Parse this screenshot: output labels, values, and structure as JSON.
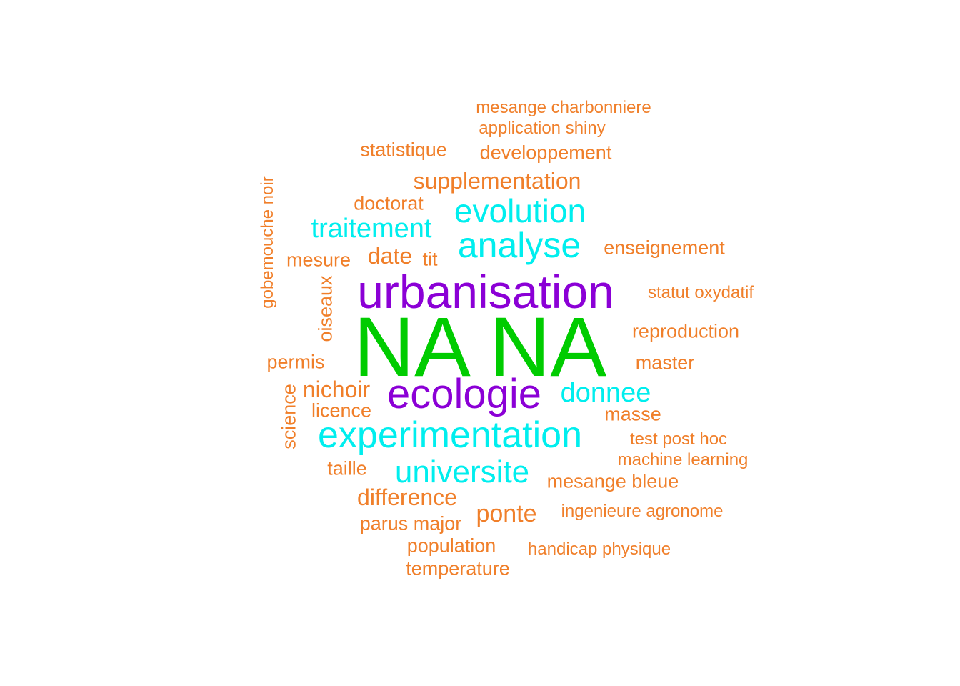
{
  "colors": {
    "green": "#00CC00",
    "purple": "#8B00D6",
    "cyan": "#00EEEE",
    "orange": "#F07F2A",
    "background": "#FFFFFF"
  },
  "words": {
    "na": {
      "text": "NA NA",
      "color": "#00CC00",
      "weight_rank": 1
    },
    "urbanisation": {
      "text": "urbanisation",
      "color": "#8B00D6",
      "weight_rank": 2
    },
    "ecologie": {
      "text": "ecologie",
      "color": "#8B00D6",
      "weight_rank": 3
    },
    "experimentation": {
      "text": "experimentation",
      "color": "#00EEEE",
      "weight_rank": 4
    },
    "analyse": {
      "text": "analyse",
      "color": "#00EEEE",
      "weight_rank": 5
    },
    "evolution": {
      "text": "evolution",
      "color": "#00EEEE",
      "weight_rank": 6
    },
    "universite": {
      "text": "universite",
      "color": "#00EEEE",
      "weight_rank": 7
    },
    "traitement": {
      "text": "traitement",
      "color": "#00EEEE",
      "weight_rank": 8
    },
    "donnee": {
      "text": "donnee",
      "color": "#00EEEE",
      "weight_rank": 9
    },
    "supplementation": {
      "text": "supplementation",
      "color": "#F07F2A"
    },
    "difference": {
      "text": "difference",
      "color": "#F07F2A"
    },
    "ponte": {
      "text": "ponte",
      "color": "#F07F2A"
    },
    "nichoir": {
      "text": "nichoir",
      "color": "#F07F2A"
    },
    "date": {
      "text": "date",
      "color": "#F07F2A"
    },
    "developpement": {
      "text": "developpement",
      "color": "#F07F2A"
    },
    "statistique": {
      "text": "statistique",
      "color": "#F07F2A"
    },
    "doctorat": {
      "text": "doctorat",
      "color": "#F07F2A"
    },
    "mesure": {
      "text": "mesure",
      "color": "#F07F2A"
    },
    "enseignement": {
      "text": "enseignement",
      "color": "#F07F2A"
    },
    "reproduction": {
      "text": "reproduction",
      "color": "#F07F2A"
    },
    "master": {
      "text": "master",
      "color": "#F07F2A"
    },
    "permis": {
      "text": "permis",
      "color": "#F07F2A"
    },
    "licence": {
      "text": "licence",
      "color": "#F07F2A"
    },
    "masse": {
      "text": "masse",
      "color": "#F07F2A"
    },
    "taille": {
      "text": "taille",
      "color": "#F07F2A"
    },
    "mesange_bleue": {
      "text": "mesange bleue",
      "color": "#F07F2A"
    },
    "parus_major": {
      "text": "parus major",
      "color": "#F07F2A"
    },
    "population": {
      "text": "population",
      "color": "#F07F2A"
    },
    "temperature": {
      "text": "temperature",
      "color": "#F07F2A"
    },
    "tit": {
      "text": "tit",
      "color": "#F07F2A"
    },
    "mesange_charbonniere": {
      "text": "mesange charbonniere",
      "color": "#F07F2A"
    },
    "application_shiny": {
      "text": "application shiny",
      "color": "#F07F2A"
    },
    "statut_oxydatif": {
      "text": "statut oxydatif",
      "color": "#F07F2A"
    },
    "test_post_hoc": {
      "text": "test post hoc",
      "color": "#F07F2A"
    },
    "machine_learning": {
      "text": "machine learning",
      "color": "#F07F2A"
    },
    "ingenieure_agronome": {
      "text": "ingenieure agronome",
      "color": "#F07F2A"
    },
    "handicap_physique": {
      "text": "handicap physique",
      "color": "#F07F2A"
    },
    "oiseaux": {
      "text": "oiseaux",
      "color": "#F07F2A",
      "orientation": "vertical"
    },
    "science": {
      "text": "science",
      "color": "#F07F2A",
      "orientation": "vertical"
    },
    "gobemouche_noir": {
      "text": "gobemouche noir",
      "color": "#F07F2A",
      "orientation": "vertical"
    }
  }
}
